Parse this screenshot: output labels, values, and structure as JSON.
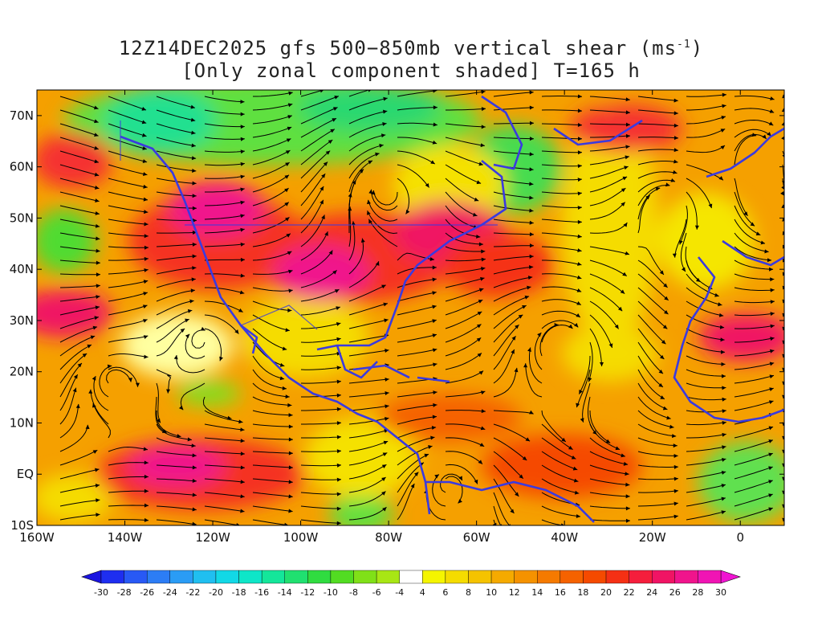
{
  "title": {
    "line1_prefix": "12Z14DEC2025 gfs 500−850mb vertical shear (ms",
    "line1_sup": "-1",
    "line1_suffix": ")",
    "line2": "[Only zonal component shaded] T=165 h"
  },
  "map": {
    "lon_labels": [
      "160W",
      "140W",
      "120W",
      "100W",
      "80W",
      "60W",
      "40W",
      "20W",
      "0"
    ],
    "lon_values": [
      -160,
      -140,
      -120,
      -100,
      -80,
      -60,
      -40,
      -20,
      0
    ],
    "lat_labels": [
      "70N",
      "60N",
      "50N",
      "40N",
      "30N",
      "20N",
      "10N",
      "EQ",
      "10S"
    ],
    "lat_values": [
      70,
      60,
      50,
      40,
      30,
      20,
      10,
      0,
      -10
    ],
    "lon_range": [
      -160,
      10
    ],
    "lat_range": [
      -10,
      75
    ],
    "coastline_color": "#3a3ae0",
    "streamline_color": "#000000"
  },
  "colorbar": {
    "labels": [
      "-30",
      "-28",
      "-26",
      "-24",
      "-22",
      "-20",
      "-18",
      "-16",
      "-14",
      "-12",
      "-10",
      "-8",
      "-6",
      "-4",
      "4",
      "6",
      "8",
      "10",
      "12",
      "14",
      "16",
      "18",
      "20",
      "22",
      "24",
      "26",
      "28",
      "30"
    ],
    "colors": [
      "#1e2ef0",
      "#2859f5",
      "#2c7df5",
      "#2a9cf5",
      "#20bff0",
      "#12d8e6",
      "#0ee6c8",
      "#14e69a",
      "#20e070",
      "#30dc40",
      "#52dc22",
      "#80e018",
      "#a8e614",
      "#ffffff",
      "#f5f500",
      "#f5dc00",
      "#f5c300",
      "#f5aa00",
      "#f59200",
      "#f57a00",
      "#f56200",
      "#f54a00",
      "#f53014",
      "#f51e3c",
      "#f01464",
      "#f0148c",
      "#f014b4"
    ],
    "left_arrow_color": "#1a14e0",
    "right_arrow_color": "#f014d2"
  }
}
